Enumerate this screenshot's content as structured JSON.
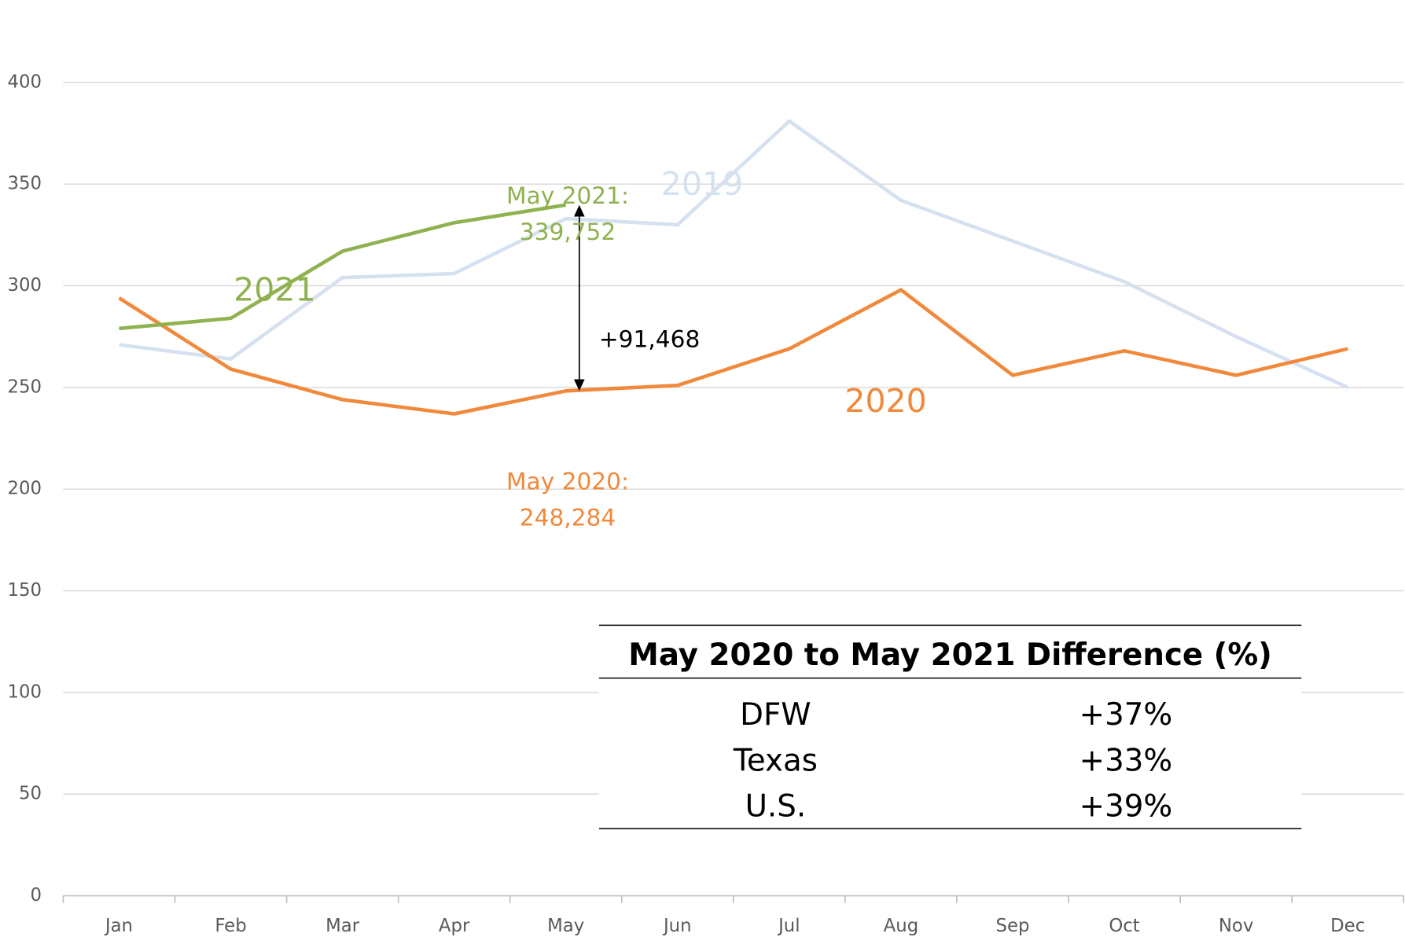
{
  "chart_data": {
    "type": "line",
    "categories": [
      "Jan",
      "Feb",
      "Mar",
      "Apr",
      "May",
      "Jun",
      "Jul",
      "Aug",
      "Sep",
      "Oct",
      "Nov",
      "Dec"
    ],
    "series": [
      {
        "name": "2019",
        "color": "#d6e1ef",
        "values": [
          271,
          264,
          304,
          306,
          333,
          330,
          381,
          342,
          322,
          302,
          275,
          250
        ]
      },
      {
        "name": "2020",
        "color": "#f0893c",
        "values": [
          294,
          259,
          244,
          237,
          248.284,
          251,
          269,
          298,
          256,
          268,
          256,
          269
        ]
      },
      {
        "name": "2021",
        "color": "#8fb14f",
        "values": [
          279,
          284,
          317,
          331,
          339.752,
          null,
          null,
          null,
          null,
          null,
          null,
          null
        ]
      }
    ],
    "ylim": [
      0,
      400
    ],
    "yticks": [
      0,
      50,
      100,
      150,
      200,
      250,
      300,
      350,
      400
    ],
    "grid": true,
    "annotations": [
      {
        "lines": [
          "May 2021:",
          "339,752"
        ],
        "color": "#8fb14f"
      },
      {
        "lines": [
          "+91,468"
        ],
        "color": "#000000"
      },
      {
        "lines": [
          "May 2020:",
          "248,284"
        ],
        "color": "#f0893c"
      }
    ],
    "table": {
      "title": "May 2020 to May 2021 Difference (%)",
      "rows": [
        [
          "DFW",
          "+37%"
        ],
        [
          "Texas",
          "+33%"
        ],
        [
          "U.S.",
          "+39%"
        ]
      ]
    }
  }
}
